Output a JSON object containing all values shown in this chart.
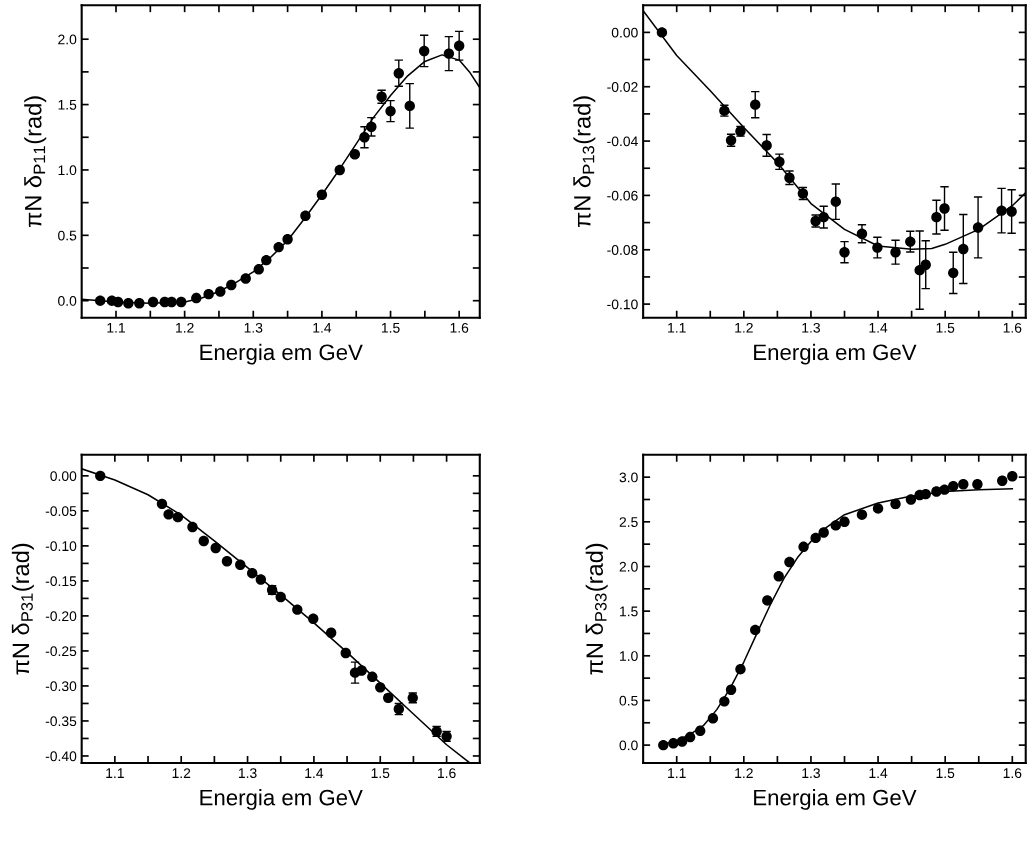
{
  "chart_data": [
    {
      "type": "scatter",
      "xlabel": "Energia em GeV",
      "ylabel": "πN δ$_{P11}$(rad)",
      "xlim": [
        1.05,
        1.63
      ],
      "ylim": [
        -0.13,
        2.26
      ],
      "xticks": [
        {
          "value": 1.1,
          "label": "1.1"
        },
        {
          "value": 1.15,
          "label": null
        },
        {
          "value": 1.2,
          "label": "1.2"
        },
        {
          "value": 1.25,
          "label": null
        },
        {
          "value": 1.3,
          "label": "1.3"
        },
        {
          "value": 1.35,
          "label": null
        },
        {
          "value": 1.4,
          "label": "1.4"
        },
        {
          "value": 1.45,
          "label": null
        },
        {
          "value": 1.5,
          "label": "1.5"
        },
        {
          "value": 1.55,
          "label": null
        },
        {
          "value": 1.6,
          "label": "1.6"
        }
      ],
      "yticks": [
        {
          "value": 0.0,
          "label": "0.0"
        },
        {
          "value": 0.25,
          "label": null
        },
        {
          "value": 0.5,
          "label": "0.5"
        },
        {
          "value": 0.75,
          "label": null
        },
        {
          "value": 1.0,
          "label": "1.0"
        },
        {
          "value": 1.25,
          "label": null
        },
        {
          "value": 1.5,
          "label": "1.5"
        },
        {
          "value": 1.75,
          "label": null
        },
        {
          "value": 2.0,
          "label": "2.0"
        }
      ],
      "series": [
        {
          "type": "scatter",
          "color": "#000000",
          "marker": "circle",
          "x": [
            1.077,
            1.094,
            1.103,
            1.118,
            1.134,
            1.154,
            1.171,
            1.181,
            1.195,
            1.217,
            1.235,
            1.252,
            1.268,
            1.289,
            1.308,
            1.319,
            1.337,
            1.35,
            1.376,
            1.4,
            1.426,
            1.448,
            1.462,
            1.472,
            1.487,
            1.5,
            1.512,
            1.528,
            1.549,
            1.585,
            1.6
          ],
          "values": [
            0.0,
            0.0,
            -0.01,
            -0.02,
            -0.02,
            -0.01,
            -0.01,
            -0.01,
            -0.01,
            0.02,
            0.05,
            0.07,
            0.12,
            0.17,
            0.24,
            0.31,
            0.41,
            0.47,
            0.65,
            0.81,
            1.0,
            1.12,
            1.25,
            1.33,
            1.56,
            1.45,
            1.74,
            1.49,
            1.91,
            1.89,
            1.95
          ],
          "errors": [
            null,
            null,
            null,
            null,
            null,
            null,
            null,
            null,
            null,
            null,
            null,
            null,
            null,
            null,
            null,
            null,
            null,
            null,
            null,
            null,
            null,
            0.02,
            0.08,
            0.07,
            0.05,
            0.08,
            0.1,
            0.17,
            0.12,
            0.13,
            0.11
          ]
        },
        {
          "type": "line",
          "color": "#000000",
          "x": [
            1.05,
            1.1,
            1.15,
            1.2,
            1.225,
            1.25,
            1.275,
            1.3,
            1.325,
            1.35,
            1.375,
            1.4,
            1.425,
            1.45,
            1.475,
            1.5,
            1.525,
            1.55,
            1.575,
            1.6,
            1.615,
            1.63
          ],
          "values": [
            0.01,
            -0.01,
            -0.02,
            -0.01,
            0.02,
            0.07,
            0.14,
            0.22,
            0.33,
            0.46,
            0.63,
            0.81,
            1.0,
            1.2,
            1.4,
            1.57,
            1.72,
            1.83,
            1.88,
            1.84,
            1.75,
            1.63
          ]
        }
      ]
    },
    {
      "type": "scatter",
      "xlabel": "Energia em GeV",
      "ylabel": "πN δ$_{P13}$(rad)",
      "xlim": [
        1.05,
        1.62
      ],
      "ylim": [
        -0.105,
        0.01
      ],
      "xticks": [
        {
          "value": 1.1,
          "label": "1.1"
        },
        {
          "value": 1.15,
          "label": null
        },
        {
          "value": 1.2,
          "label": "1.2"
        },
        {
          "value": 1.25,
          "label": null
        },
        {
          "value": 1.3,
          "label": "1.3"
        },
        {
          "value": 1.35,
          "label": null
        },
        {
          "value": 1.4,
          "label": "1.4"
        },
        {
          "value": 1.45,
          "label": null
        },
        {
          "value": 1.5,
          "label": "1.5"
        },
        {
          "value": 1.55,
          "label": null
        },
        {
          "value": 1.6,
          "label": "1.6"
        }
      ],
      "yticks": [
        {
          "value": 0.0,
          "label": "0.00"
        },
        {
          "value": -0.01,
          "label": null
        },
        {
          "value": -0.02,
          "label": "-0.02"
        },
        {
          "value": -0.03,
          "label": null
        },
        {
          "value": -0.04,
          "label": "-0.04"
        },
        {
          "value": -0.05,
          "label": null
        },
        {
          "value": -0.06,
          "label": "-0.06"
        },
        {
          "value": -0.07,
          "label": null
        },
        {
          "value": -0.08,
          "label": "-0.08"
        },
        {
          "value": -0.09,
          "label": null
        },
        {
          "value": -0.1,
          "label": "-0.10"
        }
      ],
      "series": [
        {
          "type": "scatter",
          "color": "#000000",
          "marker": "circle",
          "x": [
            1.078,
            1.171,
            1.181,
            1.195,
            1.217,
            1.234,
            1.253,
            1.268,
            1.288,
            1.307,
            1.319,
            1.337,
            1.35,
            1.376,
            1.399,
            1.426,
            1.448,
            1.462,
            1.471,
            1.487,
            1.499,
            1.512,
            1.527,
            1.549,
            1.584,
            1.599
          ],
          "values": [
            0.0,
            -0.0288,
            -0.0397,
            -0.0364,
            -0.0266,
            -0.0416,
            -0.0476,
            -0.0535,
            -0.0593,
            -0.0694,
            -0.068,
            -0.0623,
            -0.0809,
            -0.0741,
            -0.0792,
            -0.0809,
            -0.077,
            -0.0875,
            -0.0855,
            -0.068,
            -0.0648,
            -0.0885,
            -0.0797,
            -0.0718,
            -0.0656,
            -0.0659
          ],
          "errors": [
            null,
            0.002,
            0.0022,
            0.0018,
            0.0048,
            0.004,
            0.0028,
            0.0025,
            0.0022,
            0.0022,
            0.004,
            0.0065,
            0.0039,
            0.0033,
            0.0038,
            0.0044,
            0.0038,
            0.0144,
            0.0088,
            0.0062,
            0.008,
            0.0076,
            0.0127,
            0.0112,
            0.0082,
            0.008
          ]
        },
        {
          "type": "line",
          "color": "#000000",
          "x": [
            1.05,
            1.1,
            1.15,
            1.2,
            1.25,
            1.3,
            1.35,
            1.4,
            1.45,
            1.48,
            1.5,
            1.55,
            1.6,
            1.62
          ],
          "values": [
            0.008,
            -0.0085,
            -0.0215,
            -0.035,
            -0.048,
            -0.063,
            -0.0725,
            -0.0786,
            -0.0798,
            -0.0795,
            -0.078,
            -0.0725,
            -0.0638,
            -0.059
          ]
        }
      ]
    },
    {
      "type": "scatter",
      "xlabel": "Energia em GeV",
      "ylabel": "πN δ$_{P31}$(rad)",
      "xlim": [
        1.05,
        1.65
      ],
      "ylim": [
        -0.41,
        0.03
      ],
      "xticks": [
        {
          "value": 1.1,
          "label": "1.1"
        },
        {
          "value": 1.15,
          "label": null
        },
        {
          "value": 1.2,
          "label": "1.2"
        },
        {
          "value": 1.25,
          "label": null
        },
        {
          "value": 1.3,
          "label": "1.3"
        },
        {
          "value": 1.35,
          "label": null
        },
        {
          "value": 1.4,
          "label": "1.4"
        },
        {
          "value": 1.45,
          "label": null
        },
        {
          "value": 1.5,
          "label": "1.5"
        },
        {
          "value": 1.55,
          "label": null
        },
        {
          "value": 1.6,
          "label": "1.6"
        }
      ],
      "yticks": [
        {
          "value": 0.0,
          "label": "0.00"
        },
        {
          "value": -0.025,
          "label": null
        },
        {
          "value": -0.05,
          "label": "-0.05"
        },
        {
          "value": -0.075,
          "label": null
        },
        {
          "value": -0.1,
          "label": "-0.10"
        },
        {
          "value": -0.125,
          "label": null
        },
        {
          "value": -0.15,
          "label": "-0.15"
        },
        {
          "value": -0.175,
          "label": null
        },
        {
          "value": -0.2,
          "label": "-0.20"
        },
        {
          "value": -0.225,
          "label": null
        },
        {
          "value": -0.25,
          "label": "-0.25"
        },
        {
          "value": -0.275,
          "label": null
        },
        {
          "value": -0.3,
          "label": "-0.30"
        },
        {
          "value": -0.325,
          "label": null
        },
        {
          "value": -0.35,
          "label": "-0.35"
        },
        {
          "value": -0.375,
          "label": null
        },
        {
          "value": -0.4,
          "label": "-0.40"
        }
      ],
      "series": [
        {
          "type": "scatter",
          "color": "#000000",
          "marker": "circle",
          "x": [
            1.078,
            1.171,
            1.181,
            1.195,
            1.217,
            1.234,
            1.252,
            1.269,
            1.289,
            1.307,
            1.32,
            1.337,
            1.35,
            1.375,
            1.399,
            1.426,
            1.448,
            1.462,
            1.472,
            1.488,
            1.5,
            1.512,
            1.528,
            1.549,
            1.585,
            1.6
          ],
          "values": [
            0.0,
            -0.04,
            -0.055,
            -0.059,
            -0.073,
            -0.093,
            -0.103,
            -0.122,
            -0.127,
            -0.139,
            -0.148,
            -0.163,
            -0.173,
            -0.191,
            -0.204,
            -0.224,
            -0.253,
            -0.281,
            -0.278,
            -0.287,
            -0.302,
            -0.317,
            -0.333,
            -0.317,
            -0.365,
            -0.372
          ],
          "errors": [
            null,
            null,
            null,
            null,
            null,
            null,
            null,
            null,
            null,
            null,
            null,
            0.006,
            null,
            null,
            null,
            null,
            null,
            0.015,
            null,
            null,
            null,
            0.004,
            0.008,
            0.007,
            0.007,
            0.007
          ]
        },
        {
          "type": "line",
          "color": "#000000",
          "x": [
            1.05,
            1.1,
            1.15,
            1.2,
            1.25,
            1.3,
            1.35,
            1.4,
            1.45,
            1.5,
            1.55,
            1.6,
            1.635
          ],
          "values": [
            0.01,
            -0.006,
            -0.027,
            -0.056,
            -0.093,
            -0.131,
            -0.17,
            -0.21,
            -0.252,
            -0.296,
            -0.34,
            -0.384,
            -0.41
          ]
        }
      ]
    },
    {
      "type": "scatter",
      "xlabel": "Energia em GeV",
      "ylabel": "πN δ$_{P33}$(rad)",
      "xlim": [
        1.05,
        1.62
      ],
      "ylim": [
        -0.2,
        3.25
      ],
      "xticks": [
        {
          "value": 1.1,
          "label": "1.1"
        },
        {
          "value": 1.15,
          "label": null
        },
        {
          "value": 1.2,
          "label": "1.2"
        },
        {
          "value": 1.25,
          "label": null
        },
        {
          "value": 1.3,
          "label": "1.3"
        },
        {
          "value": 1.35,
          "label": null
        },
        {
          "value": 1.4,
          "label": "1.4"
        },
        {
          "value": 1.45,
          "label": null
        },
        {
          "value": 1.5,
          "label": "1.5"
        },
        {
          "value": 1.55,
          "label": null
        },
        {
          "value": 1.6,
          "label": "1.6"
        }
      ],
      "yticks": [
        {
          "value": 0.0,
          "label": "0.0"
        },
        {
          "value": 0.25,
          "label": null
        },
        {
          "value": 0.5,
          "label": "0.5"
        },
        {
          "value": 0.75,
          "label": null
        },
        {
          "value": 1.0,
          "label": "1.0"
        },
        {
          "value": 1.25,
          "label": null
        },
        {
          "value": 1.5,
          "label": "1.5"
        },
        {
          "value": 1.75,
          "label": null
        },
        {
          "value": 2.0,
          "label": "2.0"
        },
        {
          "value": 2.25,
          "label": null
        },
        {
          "value": 2.5,
          "label": "2.5"
        },
        {
          "value": 2.75,
          "label": null
        },
        {
          "value": 3.0,
          "label": "3.0"
        }
      ],
      "series": [
        {
          "type": "scatter",
          "color": "#000000",
          "marker": "circle",
          "x": [
            1.08,
            1.095,
            1.108,
            1.12,
            1.135,
            1.154,
            1.171,
            1.181,
            1.195,
            1.217,
            1.235,
            1.252,
            1.268,
            1.289,
            1.307,
            1.319,
            1.337,
            1.35,
            1.376,
            1.4,
            1.426,
            1.449,
            1.462,
            1.471,
            1.487,
            1.499,
            1.512,
            1.527,
            1.548,
            1.585,
            1.6
          ],
          "values": [
            0.0,
            0.02,
            0.04,
            0.09,
            0.16,
            0.3,
            0.49,
            0.62,
            0.85,
            1.29,
            1.62,
            1.89,
            2.05,
            2.22,
            2.32,
            2.38,
            2.46,
            2.5,
            2.58,
            2.65,
            2.7,
            2.75,
            2.8,
            2.81,
            2.84,
            2.86,
            2.9,
            2.92,
            2.92,
            2.96,
            3.01
          ]
        },
        {
          "type": "line",
          "color": "#000000",
          "x": [
            1.08,
            1.1,
            1.12,
            1.14,
            1.16,
            1.18,
            1.2,
            1.22,
            1.24,
            1.26,
            1.28,
            1.3,
            1.32,
            1.35,
            1.4,
            1.45,
            1.5,
            1.55,
            1.6
          ],
          "values": [
            0.01,
            0.05,
            0.12,
            0.22,
            0.4,
            0.64,
            0.93,
            1.26,
            1.58,
            1.87,
            2.1,
            2.28,
            2.42,
            2.58,
            2.71,
            2.79,
            2.84,
            2.86,
            2.87
          ]
        }
      ]
    }
  ]
}
